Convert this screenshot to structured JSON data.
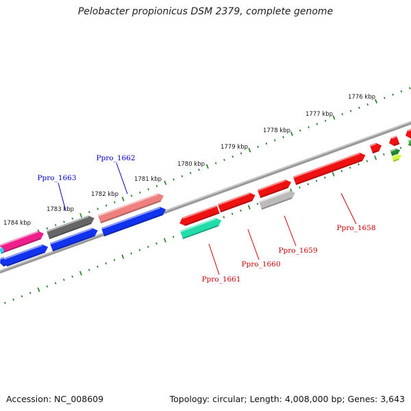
{
  "title": "Pelobacter propionicus DSM 2379, complete genome",
  "footer": {
    "accession": "Accession: NC_008609",
    "summary": "Topology: circular; Length: 4,008,000 bp; Genes: 3,643"
  },
  "scale_labels": [
    "1776 kbp",
    "1777 kbp",
    "1778 kbp",
    "1779 kbp",
    "1780 kbp",
    "1781 kbp",
    "1782 kbp",
    "1783 kbp",
    "1784 kbp"
  ],
  "genes": [
    {
      "id": "Ppro_1658",
      "color": "#dd1111"
    },
    {
      "id": "Ppro_1659",
      "color": "#aaaaaa"
    },
    {
      "id": "Ppro_1660",
      "color": "#dd1111"
    },
    {
      "id": "Ppro_1661",
      "color": "#22dd99"
    },
    {
      "id": "Ppro_1662",
      "color": "#ee8888"
    },
    {
      "id": "Ppro_1663",
      "color": "#666666"
    }
  ],
  "colors": {
    "forward_label": "#cc0000",
    "reverse_label": "#0000cc",
    "ticks": "#1a7a1a",
    "backbone": "#888888"
  }
}
